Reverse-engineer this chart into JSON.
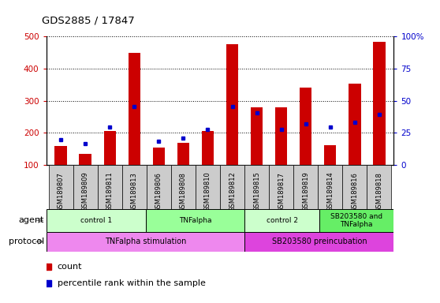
{
  "title": "GDS2885 / 17847",
  "samples": [
    "GSM189807",
    "GSM189809",
    "GSM189811",
    "GSM189813",
    "GSM189806",
    "GSM189808",
    "GSM189810",
    "GSM189812",
    "GSM189815",
    "GSM189817",
    "GSM189819",
    "GSM189814",
    "GSM189816",
    "GSM189818"
  ],
  "counts": [
    160,
    135,
    205,
    448,
    155,
    170,
    205,
    475,
    280,
    280,
    340,
    162,
    352,
    482
  ],
  "percentiles": [
    180,
    168,
    218,
    283,
    175,
    183,
    212,
    283,
    262,
    212,
    228,
    218,
    232,
    258
  ],
  "ylim_left": [
    100,
    500
  ],
  "yticks_left": [
    100,
    200,
    300,
    400,
    500
  ],
  "yticks_right_pos": [
    0,
    125,
    250,
    375,
    500
  ],
  "yticks_right_labels": [
    "0",
    "25",
    "50",
    "75",
    "100%"
  ],
  "agent_groups": [
    {
      "label": "control 1",
      "start": 0,
      "end": 4,
      "color": "#ccffcc"
    },
    {
      "label": "TNFalpha",
      "start": 4,
      "end": 8,
      "color": "#99ff99"
    },
    {
      "label": "control 2",
      "start": 8,
      "end": 11,
      "color": "#ccffcc"
    },
    {
      "label": "SB203580 and\nTNFalpha",
      "start": 11,
      "end": 14,
      "color": "#66ee66"
    }
  ],
  "protocol_groups": [
    {
      "label": "TNFalpha stimulation",
      "start": 0,
      "end": 8,
      "color": "#ee88ee"
    },
    {
      "label": "SB203580 preincubation",
      "start": 8,
      "end": 14,
      "color": "#dd44dd"
    }
  ],
  "bar_color": "#cc0000",
  "percentile_color": "#0000cc",
  "tick_label_color_left": "#cc0000",
  "tick_label_color_right": "#0000cc",
  "bg_color": "#ffffff",
  "bar_width": 0.5,
  "sample_cell_color": "#cccccc",
  "legend_items": [
    {
      "color": "#cc0000",
      "label": "count"
    },
    {
      "color": "#0000cc",
      "label": "percentile rank within the sample"
    }
  ]
}
